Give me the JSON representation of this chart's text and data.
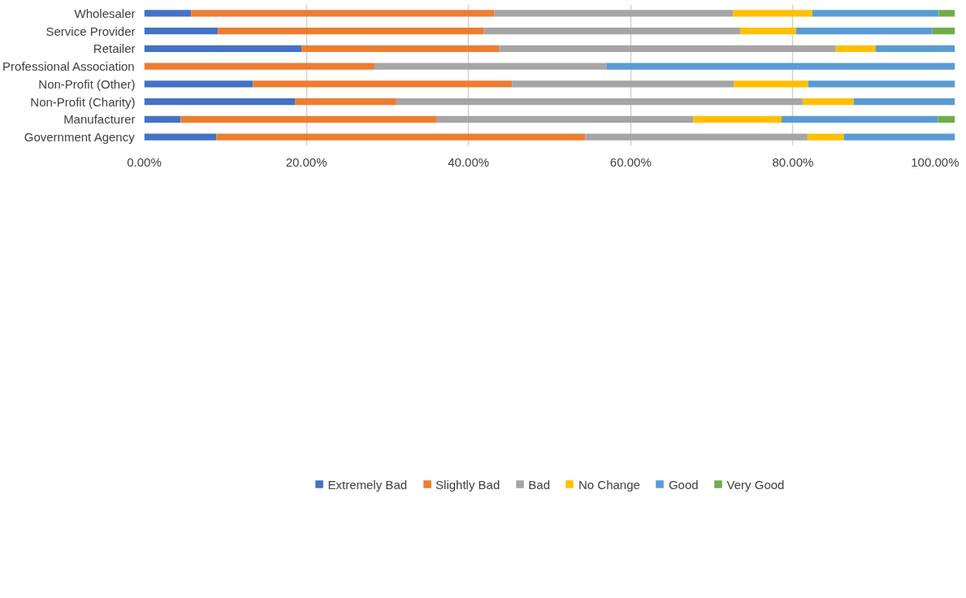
{
  "chart_data": {
    "type": "bar",
    "orientation": "horizontal",
    "stacked": true,
    "categories": [
      "Wholesaler",
      "Service Provider",
      "Retailer",
      "Professional Association",
      "Non-Profit (Other)",
      "Non-Profit (Charity)",
      "Manufacturer",
      "Government Agency"
    ],
    "series": [
      {
        "name": "Extremely Bad",
        "color": "#4472c4",
        "values": [
          5.8,
          9.1,
          19.4,
          0,
          13.4,
          18.6,
          4.5,
          8.9
        ]
      },
      {
        "name": "Slightly Bad",
        "color": "#ed7d31",
        "values": [
          37.4,
          32.8,
          24.4,
          28.4,
          32.0,
          12.5,
          31.6,
          45.5
        ]
      },
      {
        "name": "Bad",
        "color": "#a5a5a5",
        "values": [
          29.4,
          31.6,
          41.5,
          28.6,
          27.3,
          50.1,
          31.6,
          27.4
        ]
      },
      {
        "name": "No Change",
        "color": "#ffc000",
        "values": [
          9.8,
          6.9,
          4.9,
          0,
          9.2,
          6.3,
          10.9,
          4.5
        ]
      },
      {
        "name": "Good",
        "color": "#5b9bd5",
        "values": [
          15.6,
          16.8,
          9.8,
          43.0,
          18.1,
          12.5,
          19.3,
          13.7
        ]
      },
      {
        "name": "Very Good",
        "color": "#70ad47",
        "values": [
          2.0,
          2.8,
          0,
          0,
          0,
          0,
          2.1,
          0
        ]
      }
    ],
    "xlim": [
      0,
      100
    ],
    "xticks": [
      {
        "value": 0,
        "label": "0.00%"
      },
      {
        "value": 20,
        "label": "20.00%"
      },
      {
        "value": 40,
        "label": "40.00%"
      },
      {
        "value": 60,
        "label": "60.00%"
      },
      {
        "value": 80,
        "label": "80.00%"
      },
      {
        "value": 100,
        "label": "100.00%"
      }
    ],
    "grid": "x",
    "legend": "bottom"
  }
}
